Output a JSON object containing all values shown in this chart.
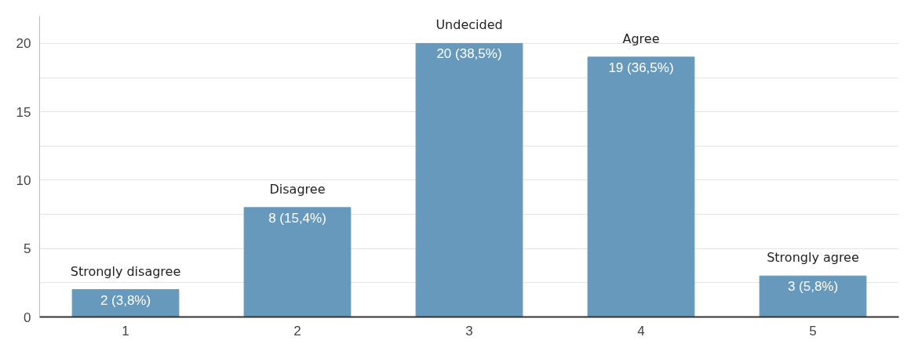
{
  "chart_data": {
    "type": "bar",
    "categories": [
      "1",
      "2",
      "3",
      "4",
      "5"
    ],
    "values": [
      2,
      8,
      20,
      19,
      3
    ],
    "color": "#6699bb",
    "value_labels": [
      "2 (3,8%)",
      "8 (15,4%)",
      "20 (38,5%)",
      "19 (36,5%)",
      "3 (5,8%)"
    ],
    "annotations": [
      {
        "text": "Strongly disagree",
        "x": "1",
        "y": 2
      },
      {
        "text": "Disagree",
        "x": "2",
        "y": 8
      },
      {
        "text": "Undecided",
        "x": "3",
        "y": 20
      },
      {
        "text": "Agree",
        "x": "4",
        "y": 19
      },
      {
        "text": "Strongly agree",
        "x": "5",
        "y": 3
      }
    ],
    "ylim": [
      0,
      22
    ],
    "yticks": [
      0,
      {
        "value": 2.5,
        "label": null
      },
      5,
      {
        "value": 7.5,
        "label": null
      },
      10,
      {
        "value": 12.5,
        "label": null
      },
      15,
      {
        "value": 17.5,
        "label": null
      },
      20
    ],
    "grid": "y"
  }
}
